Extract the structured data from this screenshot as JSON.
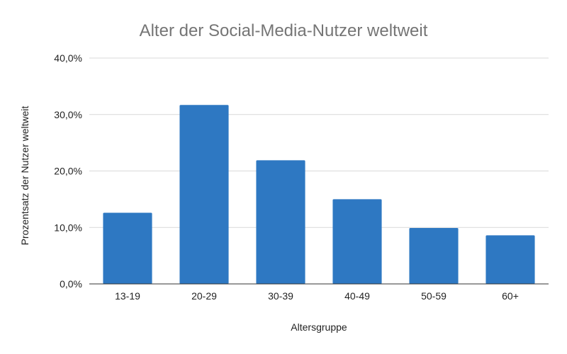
{
  "chart_data": {
    "type": "bar",
    "title": "Alter der Social-Media-Nutzer weltweit",
    "xlabel": "Altersgruppe",
    "ylabel": "Prozentsatz der Nutzer weltweit",
    "categories": [
      "13-19",
      "20-29",
      "30-39",
      "40-49",
      "50-59",
      "60+"
    ],
    "values": [
      12.6,
      31.7,
      21.9,
      15.0,
      9.9,
      8.6
    ],
    "ylim": [
      0,
      40
    ],
    "yticks": [
      0,
      10,
      20,
      30,
      40
    ],
    "ytick_labels": [
      "0,0%",
      "10,0%",
      "20,0%",
      "30,0%",
      "40,0%"
    ],
    "grid": true,
    "legend": "none",
    "bar_color": "#2e78c2",
    "grid_color": "#d9d9d9",
    "title_color": "#757575"
  }
}
